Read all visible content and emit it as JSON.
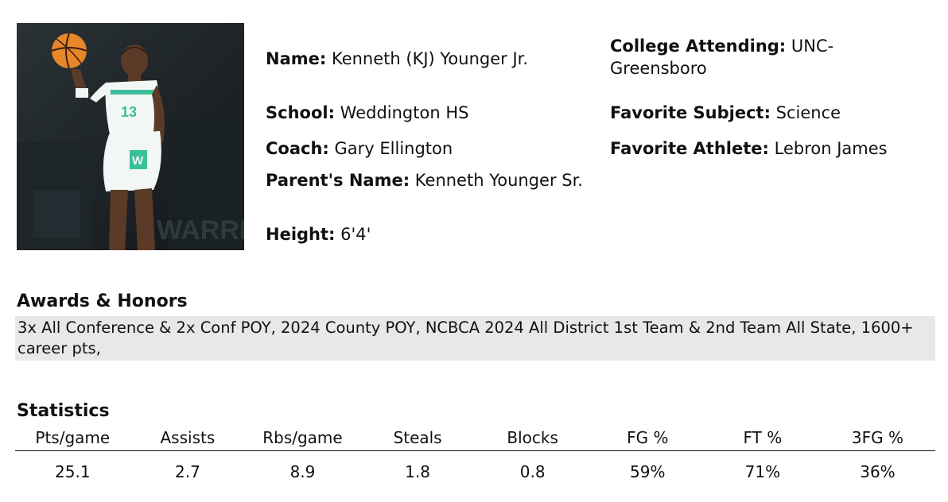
{
  "photo": {
    "alt_icon": "basketball-player-photo",
    "jersey_number": "13",
    "jersey_letter": "W",
    "background_lettering": "WARRI"
  },
  "profile": {
    "name_label": "Name:",
    "name_value": "Kenneth (KJ) Younger Jr.",
    "school_label": "School:",
    "school_value": "Weddington HS",
    "coach_label": "Coach:",
    "coach_value": "Gary Ellington",
    "parent_label": "Parent's Name:",
    "parent_value": "Kenneth Younger Sr.",
    "height_label": "Height:",
    "height_value": "6'4'",
    "college_label": "College Attending:",
    "college_value": "UNC-Greensboro",
    "subject_label": "Favorite Subject:",
    "subject_value": "Science",
    "athlete_label": "Favorite Athlete:",
    "athlete_value": "Lebron James"
  },
  "awards": {
    "title": "Awards & Honors",
    "text": "3x All Conference & 2x Conf POY, 2024 County POY, NCBCA 2024 All District 1st Team & 2nd Team All State, 1600+ career pts,"
  },
  "statistics": {
    "title": "Statistics",
    "headers": [
      "Pts/game",
      "Assists",
      "Rbs/game",
      "Steals",
      "Blocks",
      "FG %",
      "FT %",
      "3FG %"
    ],
    "values": [
      "25.1",
      "2.7",
      "8.9",
      "1.8",
      "0.8",
      "59%",
      "71%",
      "36%"
    ]
  },
  "colors": {
    "awards_background": "#e8e8e8",
    "jersey": "#f2f6f4",
    "jersey_accent": "#3bbf9a",
    "basketball": "#e8862a"
  }
}
